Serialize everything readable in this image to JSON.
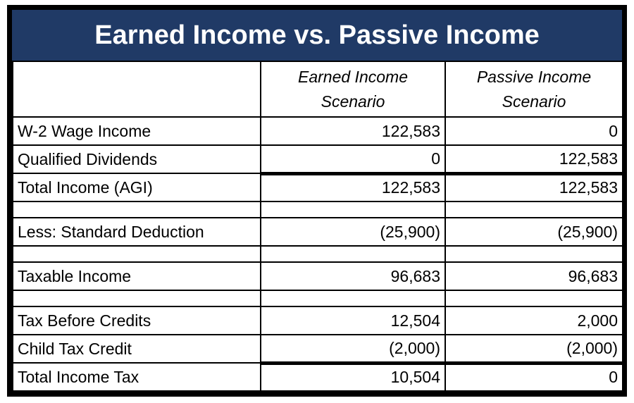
{
  "title": "Earned Income vs. Passive Income",
  "table": {
    "header": {
      "label_col": "",
      "earned": {
        "line1": "Earned Income",
        "line2": "Scenario"
      },
      "passive": {
        "line1": "Passive Income",
        "line2": "Scenario"
      }
    },
    "rows": [
      {
        "label": "W-2 Wage Income",
        "earned": "122,583",
        "passive": "0"
      },
      {
        "label": "Qualified Dividends",
        "earned": "0",
        "passive": "122,583"
      },
      {
        "label": "Total Income (AGI)",
        "earned": "122,583",
        "passive": "122,583"
      },
      {
        "label": "",
        "earned": "",
        "passive": ""
      },
      {
        "label": "Less: Standard Deduction",
        "earned": "(25,900)",
        "passive": "(25,900)"
      },
      {
        "label": "",
        "earned": "",
        "passive": ""
      },
      {
        "label": "Taxable Income",
        "earned": "96,683",
        "passive": "96,683"
      },
      {
        "label": "",
        "earned": "",
        "passive": ""
      },
      {
        "label": "Tax Before Credits",
        "earned": "12,504",
        "passive": "2,000"
      },
      {
        "label": "Child Tax Credit",
        "earned": "(2,000)",
        "passive": "(2,000)"
      },
      {
        "label": "Total Income Tax",
        "earned": "10,504",
        "passive": "0"
      }
    ]
  },
  "colors": {
    "title_bar_bg": "#203A66",
    "title_text": "#FFFFFF",
    "border": "#000000",
    "table_bg": "#FFFFFF",
    "body_text": "#000000"
  }
}
